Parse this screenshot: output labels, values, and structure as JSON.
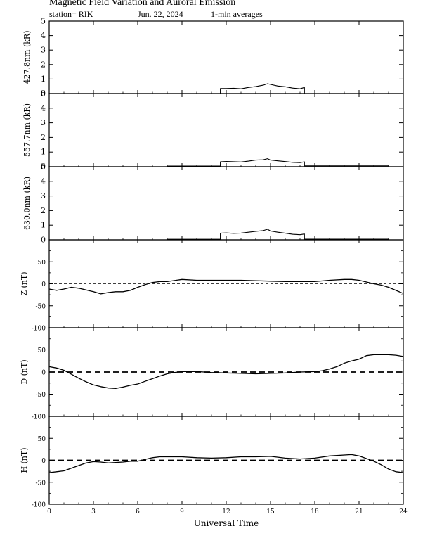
{
  "header": {
    "title": "Magnetic Field Variation and Auroral Emission",
    "station": "station= RIK",
    "date": "Jun. 22, 2024",
    "averaging": "1-min averages"
  },
  "chart_data": {
    "type": "line",
    "xlabel": "Universal Time",
    "xlim": [
      0,
      24
    ],
    "xticks": [
      0,
      3,
      6,
      9,
      12,
      15,
      18,
      21,
      24
    ],
    "xticklabels": [
      "0",
      "3",
      "6",
      "9",
      "12",
      "15",
      "18",
      "21",
      "24"
    ],
    "panels": [
      {
        "ylabel": "427.8nm (kR)",
        "ylim": [
          0,
          5
        ],
        "yticks": [
          0,
          1,
          2,
          3,
          4,
          5
        ],
        "zero_line": "none",
        "series": [
          {
            "x": [
              11.6,
              11.6,
              12.0,
              12.5,
              13.0,
              13.5,
              14.0,
              14.5,
              14.8,
              15.0,
              15.5,
              16.0,
              16.5,
              17.0,
              17.3,
              17.3
            ],
            "y": [
              0,
              0.35,
              0.35,
              0.37,
              0.33,
              0.42,
              0.48,
              0.58,
              0.68,
              0.63,
              0.52,
              0.47,
              0.38,
              0.33,
              0.42,
              0
            ]
          }
        ]
      },
      {
        "ylabel": "557.7nm (kR)",
        "ylim": [
          0,
          5
        ],
        "yticks": [
          0,
          1,
          2,
          3,
          4,
          5
        ],
        "zero_line": "none",
        "series": [
          {
            "x": [
              8.0,
              11.6,
              11.6,
              12.0,
              12.5,
              13.0,
              13.5,
              14.0,
              14.5,
              14.8,
              15.0,
              15.5,
              16.0,
              16.5,
              17.0,
              17.3,
              17.3,
              23.0
            ],
            "y": [
              0.05,
              0.05,
              0.33,
              0.36,
              0.34,
              0.32,
              0.38,
              0.45,
              0.47,
              0.55,
              0.45,
              0.4,
              0.35,
              0.3,
              0.28,
              0.33,
              0.06,
              0.06
            ]
          }
        ]
      },
      {
        "ylabel": "630.0nm (kR)",
        "ylim": [
          0,
          5
        ],
        "yticks": [
          0,
          1,
          2,
          3,
          4,
          5
        ],
        "zero_line": "none",
        "series": [
          {
            "x": [
              8.0,
              11.6,
              11.6,
              12.0,
              12.5,
              13.0,
              13.5,
              14.0,
              14.5,
              14.8,
              15.0,
              15.5,
              16.0,
              16.5,
              17.0,
              17.3,
              17.3,
              23.0
            ],
            "y": [
              0.04,
              0.04,
              0.45,
              0.47,
              0.44,
              0.46,
              0.52,
              0.58,
              0.63,
              0.72,
              0.6,
              0.52,
              0.45,
              0.38,
              0.35,
              0.4,
              0.05,
              0.05
            ]
          }
        ]
      },
      {
        "ylabel": "Z (nT)",
        "ylim": [
          -100,
          100
        ],
        "yticks": [
          -100,
          -50,
          0,
          50
        ],
        "zero_line": "dashed-thin",
        "series": [
          {
            "x": [
              0,
              0.5,
              1.0,
              1.5,
              2.0,
              2.5,
              3.0,
              3.5,
              4.0,
              4.5,
              5.0,
              5.5,
              6.0,
              6.5,
              7.0,
              7.5,
              8.0,
              9.0,
              10.0,
              11.0,
              12.0,
              13.0,
              14.0,
              15.0,
              16.0,
              17.0,
              18.0,
              19.0,
              20.0,
              20.5,
              21.0,
              21.5,
              22.0,
              22.5,
              23.0,
              23.5,
              24.0
            ],
            "y": [
              -12,
              -15,
              -12,
              -8,
              -10,
              -14,
              -18,
              -23,
              -20,
              -18,
              -18,
              -15,
              -8,
              -2,
              3,
              5,
              5,
              10,
              8,
              8,
              8,
              8,
              7,
              6,
              5,
              5,
              5,
              8,
              10,
              10,
              8,
              4,
              0,
              -3,
              -8,
              -15,
              -22
            ]
          }
        ]
      },
      {
        "ylabel": "D (nT)",
        "ylim": [
          -100,
          100
        ],
        "yticks": [
          -100,
          -50,
          0,
          50
        ],
        "zero_line": "dashed-thick",
        "series": [
          {
            "x": [
              0,
              0.5,
              1.0,
              1.5,
              2.0,
              2.5,
              3.0,
              3.5,
              4.0,
              4.5,
              5.0,
              5.5,
              6.0,
              6.5,
              7.0,
              7.5,
              8.0,
              8.5,
              9.0,
              10.0,
              11.0,
              12.0,
              13.0,
              14.0,
              15.0,
              16.0,
              17.0,
              18.0,
              18.5,
              19.0,
              19.5,
              20.0,
              20.5,
              21.0,
              21.5,
              22.0,
              22.5,
              23.0,
              23.5,
              24.0
            ],
            "y": [
              12,
              9,
              4,
              -5,
              -14,
              -22,
              -29,
              -33,
              -36,
              -37,
              -34,
              -30,
              -27,
              -21,
              -15,
              -9,
              -4,
              -1,
              1,
              1,
              -1,
              -2,
              -3,
              -4,
              -3,
              -2,
              0,
              1,
              3,
              7,
              12,
              20,
              25,
              29,
              37,
              39,
              39,
              39,
              38,
              35
            ]
          }
        ]
      },
      {
        "ylabel": "H (nT)",
        "ylim": [
          -100,
          100
        ],
        "yticks": [
          -100,
          -50,
          0,
          50
        ],
        "zero_line": "dashed-thick",
        "series": [
          {
            "x": [
              0,
              0.5,
              1.0,
              1.5,
              2.0,
              2.5,
              3.0,
              3.5,
              4.0,
              4.5,
              5.0,
              5.5,
              6.0,
              6.5,
              7.0,
              7.5,
              8.0,
              9.0,
              10.0,
              11.0,
              12.0,
              13.0,
              14.0,
              15.0,
              16.0,
              17.0,
              18.0,
              19.0,
              20.0,
              20.5,
              21.0,
              21.5,
              22.0,
              22.5,
              23.0,
              23.5,
              24.0
            ],
            "y": [
              -28,
              -26,
              -24,
              -18,
              -12,
              -6,
              -3,
              -4,
              -6,
              -5,
              -4,
              -2,
              -2,
              2,
              6,
              8,
              8,
              8,
              6,
              5,
              6,
              8,
              8,
              9,
              5,
              3,
              5,
              10,
              12,
              13,
              10,
              4,
              -2,
              -10,
              -20,
              -26,
              -28
            ]
          }
        ]
      }
    ]
  }
}
